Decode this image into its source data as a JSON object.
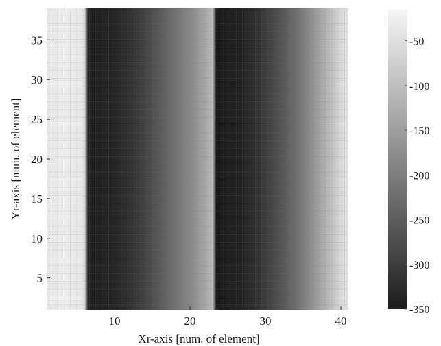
{
  "chart_data": {
    "type": "heatmap",
    "xlabel": "Xr-axis [num. of element]",
    "ylabel": "Yr-axis [num. of element]",
    "xlim": [
      1,
      41
    ],
    "ylim": [
      1,
      39
    ],
    "x_ticks": [
      10,
      20,
      30,
      40
    ],
    "y_ticks": [
      5,
      10,
      15,
      20,
      25,
      30,
      35
    ],
    "colorbar": {
      "range": [
        -350,
        -15
      ],
      "ticks": [
        -50,
        -100,
        -150,
        -200,
        -250,
        -300,
        -350
      ],
      "colormap": "gray"
    },
    "description_values": {
      "profile_x": [
        1,
        2,
        3,
        4,
        5,
        6,
        6.5,
        7,
        10,
        12,
        14,
        16,
        18,
        20,
        22,
        23,
        23.5,
        24,
        27,
        29,
        30,
        32,
        34,
        36,
        38,
        40,
        41
      ],
      "profile_value": [
        -40,
        -35,
        -32,
        -30,
        -34,
        -42,
        -335,
        -345,
        -335,
        -318,
        -290,
        -255,
        -220,
        -185,
        -140,
        -105,
        -345,
        -350,
        -338,
        -318,
        -300,
        -265,
        -225,
        -175,
        -120,
        -60,
        -45
      ]
    }
  }
}
